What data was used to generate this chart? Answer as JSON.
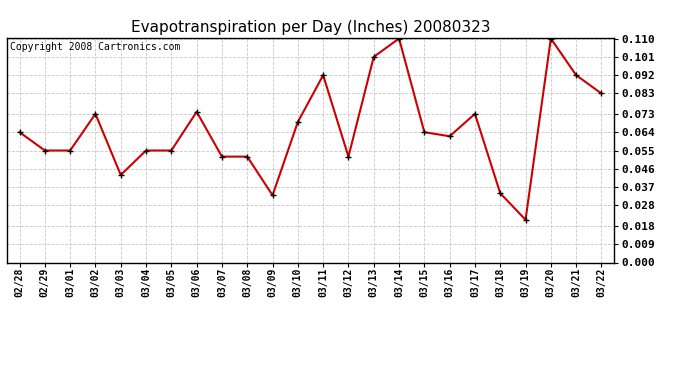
{
  "title": "Evapotranspiration per Day (Inches) 20080323",
  "copyright": "Copyright 2008 Cartronics.com",
  "dates": [
    "02/28",
    "02/29",
    "03/01",
    "03/02",
    "03/03",
    "03/04",
    "03/05",
    "03/06",
    "03/07",
    "03/08",
    "03/09",
    "03/10",
    "03/11",
    "03/12",
    "03/13",
    "03/14",
    "03/15",
    "03/16",
    "03/17",
    "03/18",
    "03/19",
    "03/20",
    "03/21",
    "03/22"
  ],
  "values": [
    0.064,
    0.055,
    0.055,
    0.073,
    0.043,
    0.055,
    0.055,
    0.074,
    0.052,
    0.052,
    0.033,
    0.069,
    0.092,
    0.052,
    0.101,
    0.11,
    0.064,
    0.062,
    0.073,
    0.034,
    0.021,
    0.11,
    0.092,
    0.083
  ],
  "line_color": "#cc0000",
  "marker": "+",
  "marker_color": "#000000",
  "bg_color": "#ffffff",
  "plot_bg_color": "#ffffff",
  "grid_color": "#c8c8c8",
  "ylim": [
    0.0,
    0.11
  ],
  "yticks": [
    0.0,
    0.009,
    0.018,
    0.028,
    0.037,
    0.046,
    0.055,
    0.064,
    0.073,
    0.083,
    0.092,
    0.101,
    0.11
  ],
  "title_fontsize": 11,
  "copyright_fontsize": 7,
  "tick_fontsize": 7,
  "ytick_fontsize": 8
}
